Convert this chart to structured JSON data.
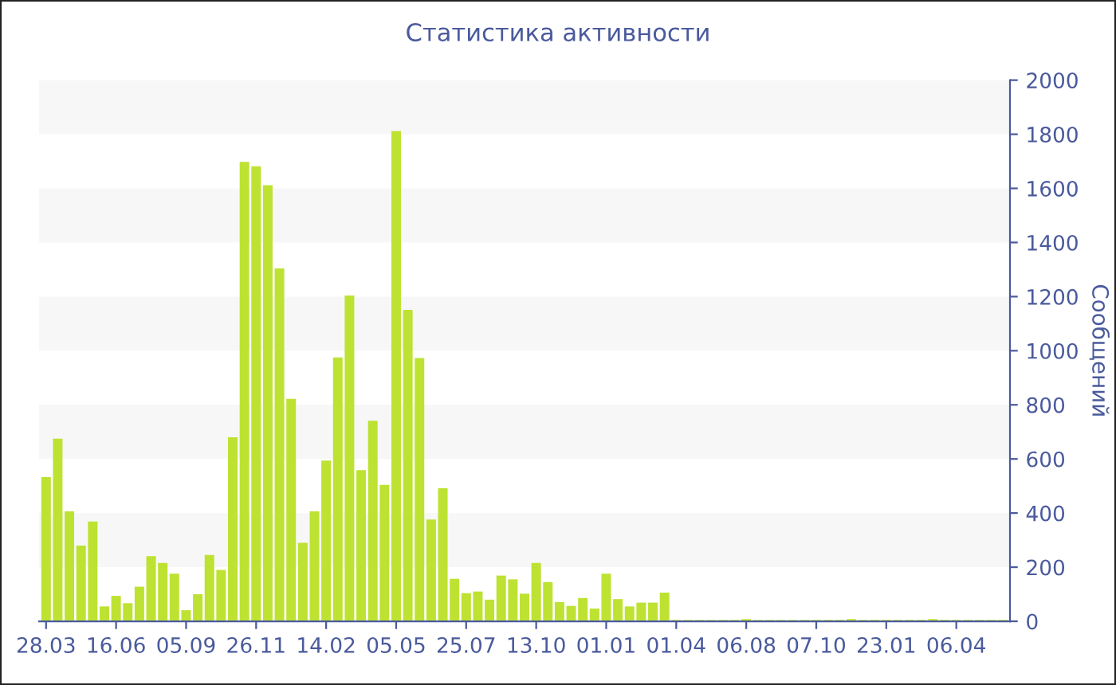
{
  "chart_data": {
    "type": "bar",
    "title": "Статистика активности",
    "ylabel": "Сообщений",
    "categories": [
      "28.03",
      null,
      null,
      null,
      null,
      null,
      "16.06",
      null,
      null,
      null,
      null,
      null,
      "05.09",
      null,
      null,
      null,
      null,
      null,
      "26.11",
      null,
      null,
      null,
      null,
      null,
      "14.02",
      null,
      null,
      null,
      null,
      null,
      "05.05",
      null,
      null,
      null,
      null,
      null,
      "25.07",
      null,
      null,
      null,
      null,
      null,
      "13.10",
      null,
      null,
      null,
      null,
      null,
      "01.01",
      null,
      null,
      null,
      null,
      null,
      "01.04",
      null,
      null,
      null,
      null,
      null,
      "06.08",
      null,
      null,
      null,
      null,
      null,
      "07.10",
      null,
      null,
      null,
      null,
      null,
      "23.01",
      null,
      null,
      null,
      null,
      null,
      "06.04",
      null,
      null,
      null,
      null
    ],
    "values": [
      533,
      675,
      406,
      280,
      369,
      55,
      94,
      67,
      128,
      241,
      216,
      176,
      41,
      100,
      245,
      190,
      680,
      1698,
      1682,
      1612,
      1304,
      822,
      290,
      406,
      594,
      975,
      1204,
      559,
      741,
      504,
      1812,
      1151,
      973,
      376,
      492,
      157,
      104,
      110,
      80,
      169,
      155,
      102,
      216,
      145,
      71,
      57,
      86,
      47,
      176,
      82,
      55,
      69,
      69,
      106,
      5,
      5,
      5,
      5,
      5,
      5,
      8,
      5,
      5,
      5,
      5,
      5,
      5,
      5,
      5,
      8,
      5,
      5,
      5,
      5,
      5,
      5,
      8,
      5,
      5,
      5,
      5,
      5,
      5
    ],
    "color": "#bde232",
    "ylim": [
      0,
      2000
    ],
    "yticks": [
      0,
      200,
      400,
      600,
      800,
      1000,
      1200,
      1400,
      1600,
      1800,
      2000
    ],
    "bands": [
      {
        "axis": "y",
        "from": 200,
        "to": 400,
        "color": "#f7f7f7"
      },
      {
        "axis": "y",
        "from": 600,
        "to": 800,
        "color": "#f7f7f7"
      },
      {
        "axis": "y",
        "from": 1000,
        "to": 1200,
        "color": "#f7f7f7"
      },
      {
        "axis": "y",
        "from": 1400,
        "to": 1600,
        "color": "#f7f7f7"
      },
      {
        "axis": "y",
        "from": 1800,
        "to": 2000,
        "color": "#f7f7f7"
      }
    ]
  }
}
